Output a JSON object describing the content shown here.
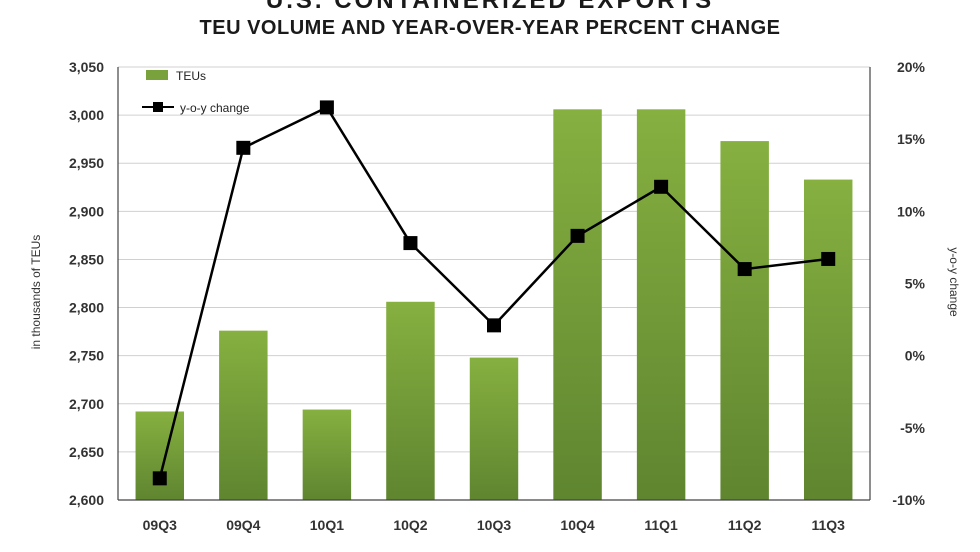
{
  "title": "U.S. CONTAINERIZED EXPORTS",
  "subtitle": "TEU VOLUME AND YEAR-OVER-YEAR PERCENT CHANGE",
  "chart_data": {
    "type": "bar",
    "categories": [
      "09Q3",
      "09Q4",
      "10Q1",
      "10Q2",
      "10Q3",
      "10Q4",
      "11Q1",
      "11Q2",
      "11Q3"
    ],
    "series": [
      {
        "name": "TEUs",
        "type": "bar",
        "axis": "left",
        "color": "#7aa23c",
        "values": [
          2692,
          2776,
          2694,
          2806,
          2748,
          3006,
          3006,
          2973,
          2933
        ]
      },
      {
        "name": "y-o-y change",
        "type": "line",
        "axis": "right",
        "color": "#000000",
        "values": [
          -8.5,
          14.4,
          17.2,
          7.8,
          2.1,
          8.3,
          11.7,
          6.0,
          6.7
        ]
      }
    ],
    "ylabel": "in thousands of TEUs",
    "ylim": [
      2600,
      3050
    ],
    "yticks": [
      "2,600",
      "2,650",
      "2,700",
      "2,750",
      "2,800",
      "2,850",
      "2,900",
      "2,950",
      "3,000",
      "3,050"
    ],
    "y2label": "y-o-y change",
    "y2lim": [
      -10,
      20
    ],
    "y2ticks": [
      "-10%",
      "-5%",
      "0%",
      "5%",
      "10%",
      "15%",
      "20%"
    ],
    "grid": true,
    "legend": "top-left"
  }
}
